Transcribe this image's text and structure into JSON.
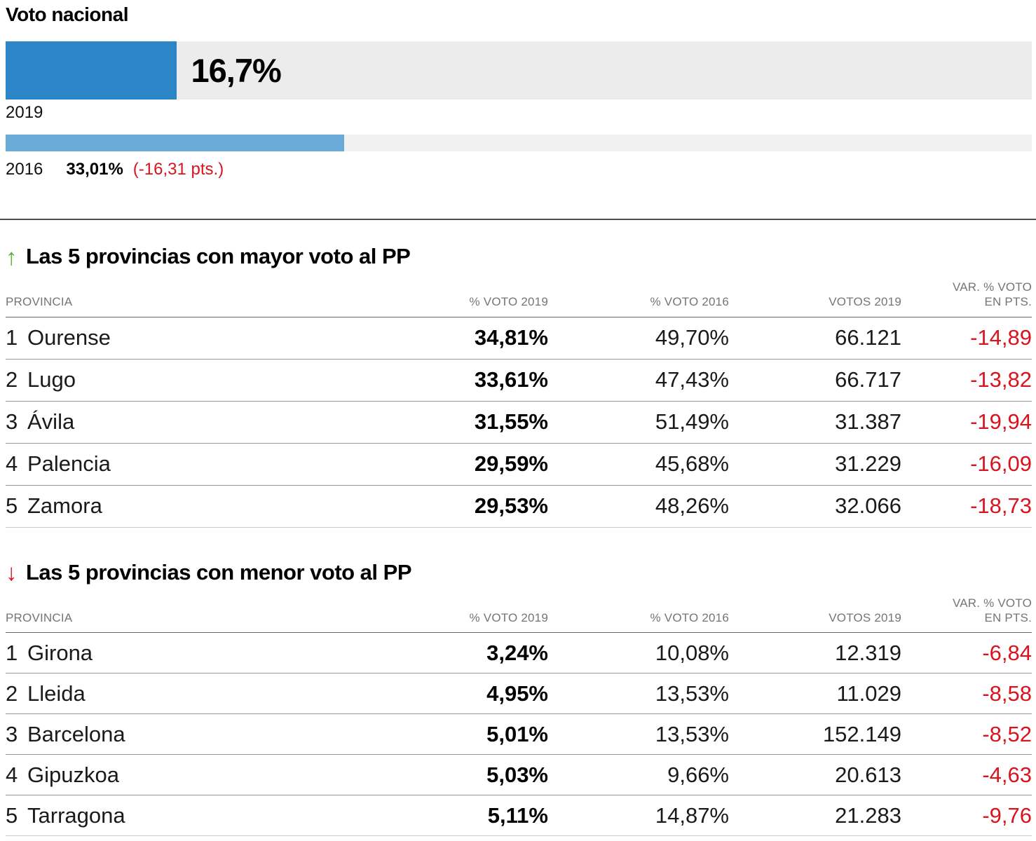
{
  "national": {
    "title": "Voto nacional",
    "bar_2019": {
      "year": "2019",
      "value_label": "16,7%",
      "pct": 16.7
    },
    "bar_2016": {
      "year": "2016",
      "value_label": "33,01%",
      "diff_label": "(-16,31 pts.)",
      "pct": 33.01
    }
  },
  "tables": [
    {
      "arrow": "↑",
      "title": "Las 5 provincias con mayor voto al PP",
      "headers": {
        "provincia": "PROVINCIA",
        "voto2019": "% VOTO 2019",
        "voto2016": "% VOTO 2016",
        "votos2019": "VOTOS 2019",
        "var_line1": "VAR. % VOTO",
        "var_line2": "EN PTS."
      },
      "rows": [
        {
          "rank": "1",
          "name": "Ourense",
          "voto2019": "34,81%",
          "voto2016": "49,70%",
          "votos2019": "66.121",
          "var": "-14,89"
        },
        {
          "rank": "2",
          "name": "Lugo",
          "voto2019": "33,61%",
          "voto2016": "47,43%",
          "votos2019": "66.717",
          "var": "-13,82"
        },
        {
          "rank": "3",
          "name": "Ávila",
          "voto2019": "31,55%",
          "voto2016": "51,49%",
          "votos2019": "31.387",
          "var": "-19,94"
        },
        {
          "rank": "4",
          "name": "Palencia",
          "voto2019": "29,59%",
          "voto2016": "45,68%",
          "votos2019": "31.229",
          "var": "-16,09"
        },
        {
          "rank": "5",
          "name": "Zamora",
          "voto2019": "29,53%",
          "voto2016": "48,26%",
          "votos2019": "32.066",
          "var": "-18,73"
        }
      ]
    },
    {
      "arrow": "↓",
      "title": "Las 5 provincias con menor voto al PP",
      "headers": {
        "provincia": "PROVINCIA",
        "voto2019": "% VOTO 2019",
        "voto2016": "% VOTO 2016",
        "votos2019": "VOTOS 2019",
        "var_line1": "VAR. % VOTO",
        "var_line2": "EN PTS."
      },
      "rows": [
        {
          "rank": "1",
          "name": "Girona",
          "voto2019": "3,24%",
          "voto2016": "10,08%",
          "votos2019": "12.319",
          "var": "-6,84"
        },
        {
          "rank": "2",
          "name": "Lleida",
          "voto2019": "4,95%",
          "voto2016": "13,53%",
          "votos2019": "11.029",
          "var": "-8,58"
        },
        {
          "rank": "3",
          "name": "Barcelona",
          "voto2019": "5,01%",
          "voto2016": "13,53%",
          "votos2019": "152.149",
          "var": "-8,52"
        },
        {
          "rank": "4",
          "name": "Gipuzkoa",
          "voto2019": "5,03%",
          "voto2016": "9,66%",
          "votos2019": "20.613",
          "var": "-4,63"
        },
        {
          "rank": "5",
          "name": "Tarragona",
          "voto2019": "5,11%",
          "voto2016": "14,87%",
          "votos2019": "21.283",
          "var": "-9,76"
        }
      ]
    }
  ],
  "colors": {
    "bar_2019": "#2b85c6",
    "bar_2016": "#69aad8",
    "track_big": "#ececec",
    "track_small": "#f1f1f1",
    "negative": "#d8141f",
    "up_arrow": "#56b22d",
    "down_arrow": "#d8141f"
  },
  "chart_data": [
    {
      "type": "bar",
      "orientation": "horizontal",
      "title": "Voto nacional",
      "categories": [
        "2019",
        "2016"
      ],
      "values": [
        16.7,
        33.01
      ],
      "value_labels": [
        "16,7%",
        "33,01%"
      ],
      "annotations": [
        "(-16,31 pts.)"
      ],
      "xlim": [
        0,
        100
      ],
      "unit": "%",
      "legend_position": "none",
      "grid": false
    },
    {
      "type": "table",
      "title": "Las 5 provincias con mayor voto al PP",
      "columns": [
        "PROVINCIA",
        "% VOTO 2019",
        "% VOTO 2016",
        "VOTOS 2019",
        "VAR. % VOTO EN PTS."
      ],
      "rows": [
        [
          "1 Ourense",
          "34,81%",
          "49,70%",
          "66.121",
          "-14,89"
        ],
        [
          "2 Lugo",
          "33,61%",
          "47,43%",
          "66.717",
          "-13,82"
        ],
        [
          "3 Ávila",
          "31,55%",
          "51,49%",
          "31.387",
          "-19,94"
        ],
        [
          "4 Palencia",
          "29,59%",
          "45,68%",
          "31.229",
          "-16,09"
        ],
        [
          "5 Zamora",
          "29,53%",
          "48,26%",
          "32.066",
          "-18,73"
        ]
      ]
    },
    {
      "type": "table",
      "title": "Las 5 provincias con menor voto al PP",
      "columns": [
        "PROVINCIA",
        "% VOTO 2019",
        "% VOTO 2016",
        "VOTOS 2019",
        "VAR. % VOTO EN PTS."
      ],
      "rows": [
        [
          "1 Girona",
          "3,24%",
          "10,08%",
          "12.319",
          "-6,84"
        ],
        [
          "2 Lleida",
          "4,95%",
          "13,53%",
          "11.029",
          "-8,58"
        ],
        [
          "3 Barcelona",
          "5,01%",
          "13,53%",
          "152.149",
          "-8,52"
        ],
        [
          "4 Gipuzkoa",
          "5,03%",
          "9,66%",
          "20.613",
          "-4,63"
        ],
        [
          "5 Tarragona",
          "5,11%",
          "14,87%",
          "21.283",
          "-9,76"
        ]
      ]
    }
  ]
}
